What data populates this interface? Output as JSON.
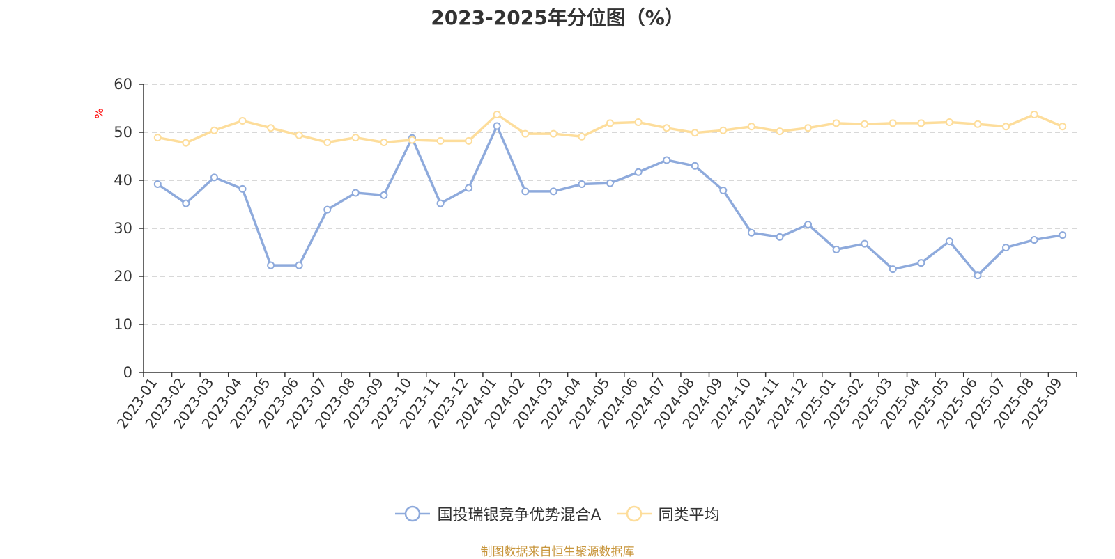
{
  "chart_data": {
    "type": "line",
    "title": "2023-2025年分位图（%）",
    "ylabel": "%",
    "xlabel": "",
    "ylim": [
      0,
      60
    ],
    "yticks": [
      0,
      10,
      20,
      30,
      40,
      50,
      60
    ],
    "grid": true,
    "legend_position": "bottom",
    "categories": [
      "2023-01",
      "2023-02",
      "2023-03",
      "2023-04",
      "2023-05",
      "2023-06",
      "2023-07",
      "2023-08",
      "2023-09",
      "2023-10",
      "2023-11",
      "2023-12",
      "2024-01",
      "2024-02",
      "2024-03",
      "2024-04",
      "2024-05",
      "2024-06",
      "2024-07",
      "2024-08",
      "2024-09",
      "2024-10",
      "2024-11",
      "2024-12",
      "2025-01",
      "2025-02",
      "2025-03",
      "2025-04",
      "2025-05",
      "2025-06",
      "2025-07",
      "2025-08",
      "2025-09"
    ],
    "series": [
      {
        "name": "国投瑞银竞争优势混合A",
        "color": "#8eaadc",
        "values": [
          39.2,
          35.2,
          40.6,
          38.2,
          22.3,
          22.3,
          33.9,
          37.4,
          36.9,
          48.8,
          35.2,
          38.4,
          51.3,
          37.7,
          37.7,
          39.2,
          39.4,
          41.7,
          44.2,
          43.0,
          37.9,
          29.1,
          28.2,
          30.8,
          25.6,
          26.8,
          21.5,
          22.8,
          27.3,
          20.2,
          26.0,
          27.6,
          28.6
        ]
      },
      {
        "name": "同类平均",
        "color": "#fddd9b",
        "values": [
          48.9,
          47.8,
          50.4,
          52.4,
          50.9,
          49.4,
          47.9,
          48.9,
          47.9,
          48.4,
          48.2,
          48.2,
          53.7,
          49.7,
          49.7,
          49.1,
          51.9,
          52.1,
          50.9,
          49.9,
          50.4,
          51.2,
          50.2,
          50.9,
          51.9,
          51.7,
          51.9,
          51.9,
          52.1,
          51.7,
          51.2,
          53.7,
          51.2
        ]
      }
    ]
  },
  "source_note": "制图数据来自恒生聚源数据库"
}
